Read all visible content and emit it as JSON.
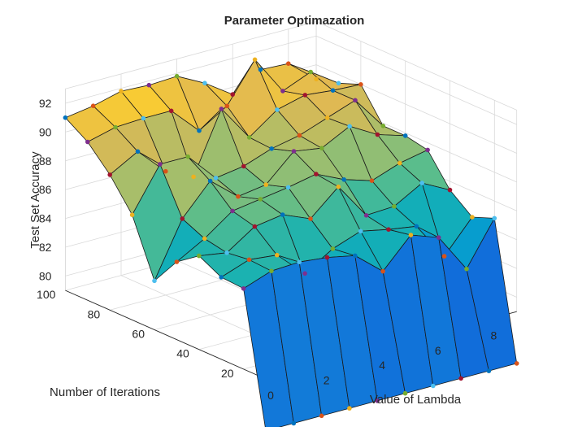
{
  "chart_data": {
    "type": "surface",
    "title": "Parameter Optimazation",
    "xlabel": "Value of Lambda",
    "ylabel": "Number of Iterations",
    "zlabel": "Test Set Accuracy",
    "x": [
      0,
      1,
      2,
      3,
      4,
      5,
      6,
      7,
      8,
      9
    ],
    "y": [
      10,
      20,
      30,
      40,
      50,
      60,
      70,
      80,
      90,
      100
    ],
    "xlim": [
      0,
      9
    ],
    "ylim": [
      10,
      100
    ],
    "zlim": [
      79,
      93
    ],
    "x_ticks": [
      0,
      2,
      4,
      6,
      8
    ],
    "y_ticks": [
      20,
      40,
      60,
      80,
      100
    ],
    "z_ticks": [
      80,
      82,
      84,
      86,
      88,
      90,
      92
    ],
    "colormap": "parula",
    "grid": true,
    "z_rows_by_iteration": [
      [
        75.4,
        75.4,
        75.4,
        75.4,
        75.4,
        75.4,
        75.4,
        75.4,
        75.4,
        75.4
      ],
      [
        84.6,
        85.3,
        85.4,
        85.2,
        84.8,
        83.2,
        85.2,
        84.5,
        81.8,
        84.8
      ],
      [
        84.7,
        85.4,
        85.2,
        83.4,
        84.6,
        85.3,
        84.9,
        84.6,
        82.0,
        84.2
      ],
      [
        85.5,
        85.2,
        86.5,
        86.8,
        86.0,
        87.7,
        85.2,
        85.3,
        86.4,
        85.4
      ],
      [
        84.4,
        85.5,
        86.9,
        87.2,
        87.5,
        87.9,
        87.0,
        86.4,
        87.1,
        87.5
      ],
      [
        82.4,
        86.2,
        88.3,
        86.7,
        87.0,
        88.8,
        88.5,
        89.5,
        88.4,
        87.8
      ],
      [
        86.3,
        89.3,
        89.3,
        87.3,
        87.6,
        88.3,
        88.7,
        89.4,
        90.1,
        87.8
      ],
      [
        88.4,
        89.5,
        87.6,
        86.7,
        90.9,
        88.4,
        89.8,
        90.3,
        90.1,
        90.0
      ],
      [
        90.0,
        90.5,
        90.6,
        90.6,
        88.7,
        89.9,
        92.6,
        89.9,
        90.7,
        89.4
      ],
      [
        91.0,
        91.3,
        91.8,
        91.7,
        91.8,
        90.8,
        89.5,
        90.7,
        90.6,
        89.0
      ]
    ]
  }
}
